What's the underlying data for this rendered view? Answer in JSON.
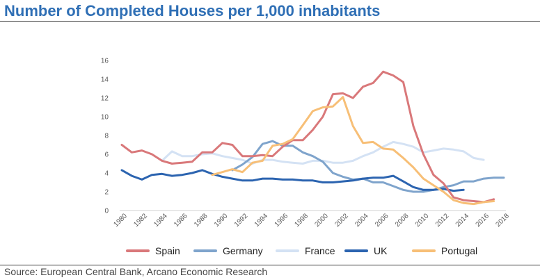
{
  "title": "Number of Completed Houses per 1,000 inhabitants",
  "source": "Source: European Central Bank, Arcano Economic Research",
  "chart_data": {
    "type": "line",
    "title": "Number of Completed Houses per 1,000 inhabitants",
    "xlabel": "",
    "ylabel": "",
    "xlim": [
      1980,
      2018
    ],
    "ylim": [
      0,
      16
    ],
    "yticks": [
      0,
      2,
      4,
      6,
      8,
      10,
      12,
      14,
      16
    ],
    "xticks": [
      1980,
      1982,
      1984,
      1986,
      1988,
      1990,
      1992,
      1994,
      1996,
      1998,
      2000,
      2002,
      2004,
      2006,
      2008,
      2010,
      2012,
      2014,
      2016,
      2018
    ],
    "grid": false,
    "legend_position": "bottom",
    "series": [
      {
        "name": "Spain",
        "color": "#d9787a",
        "x": [
          1980,
          1981,
          1982,
          1983,
          1984,
          1985,
          1986,
          1987,
          1988,
          1989,
          1990,
          1991,
          1992,
          1993,
          1994,
          1995,
          1996,
          1997,
          1998,
          1999,
          2000,
          2001,
          2002,
          2003,
          2004,
          2005,
          2006,
          2007,
          2008,
          2009,
          2010,
          2011,
          2012,
          2013,
          2014,
          2015,
          2016,
          2017
        ],
        "y": [
          7.0,
          6.2,
          6.4,
          6.0,
          5.3,
          5.0,
          5.1,
          5.2,
          6.2,
          6.2,
          7.2,
          7.0,
          5.8,
          5.8,
          5.9,
          5.8,
          6.8,
          7.5,
          7.5,
          8.6,
          10.0,
          12.4,
          12.5,
          12.0,
          13.2,
          13.6,
          14.8,
          14.4,
          13.7,
          9.0,
          6.0,
          3.8,
          2.9,
          1.4,
          1.1,
          1.0,
          0.9,
          1.2
        ]
      },
      {
        "name": "Germany",
        "color": "#7fa4cc",
        "x": [
          1991,
          1992,
          1993,
          1994,
          1995,
          1996,
          1997,
          1998,
          1999,
          2000,
          2001,
          2002,
          2003,
          2004,
          2005,
          2006,
          2007,
          2008,
          2009,
          2010,
          2011,
          2012,
          2013,
          2014,
          2015,
          2016,
          2017,
          2018
        ],
        "y": [
          4.3,
          4.9,
          5.7,
          7.1,
          7.4,
          6.9,
          6.9,
          6.2,
          5.8,
          5.2,
          4.0,
          3.6,
          3.3,
          3.4,
          3.0,
          3.0,
          2.6,
          2.2,
          2.0,
          2.0,
          2.2,
          2.5,
          2.7,
          3.1,
          3.1,
          3.4,
          3.5,
          3.5
        ]
      },
      {
        "name": "France",
        "color": "#d4e2f4",
        "x": [
          1984,
          1985,
          1986,
          1987,
          1988,
          1989,
          1990,
          1991,
          1992,
          1993,
          1994,
          1995,
          1996,
          1997,
          1998,
          1999,
          2000,
          2001,
          2002,
          2003,
          2004,
          2005,
          2006,
          2007,
          2008,
          2009,
          2010,
          2011,
          2012,
          2013,
          2014,
          2015,
          2016
        ],
        "y": [
          5.3,
          6.3,
          5.8,
          5.8,
          6.0,
          6.1,
          5.8,
          5.6,
          5.4,
          5.0,
          5.4,
          5.4,
          5.2,
          5.1,
          5.0,
          5.3,
          5.3,
          5.1,
          5.1,
          5.3,
          5.8,
          6.2,
          6.8,
          7.3,
          7.1,
          6.8,
          6.2,
          6.4,
          6.6,
          6.5,
          6.3,
          5.6,
          5.4
        ]
      },
      {
        "name": "UK",
        "color": "#2c64b0",
        "x": [
          1980,
          1981,
          1982,
          1983,
          1984,
          1985,
          1986,
          1987,
          1988,
          1989,
          1990,
          1991,
          1992,
          1993,
          1994,
          1995,
          1996,
          1997,
          1998,
          1999,
          2000,
          2001,
          2002,
          2003,
          2004,
          2005,
          2006,
          2007,
          2008,
          2009,
          2010,
          2011,
          2012,
          2013,
          2014
        ],
        "y": [
          4.3,
          3.7,
          3.3,
          3.8,
          3.9,
          3.7,
          3.8,
          4.0,
          4.3,
          3.9,
          3.6,
          3.4,
          3.2,
          3.2,
          3.4,
          3.4,
          3.3,
          3.3,
          3.2,
          3.2,
          3.0,
          3.0,
          3.1,
          3.2,
          3.4,
          3.5,
          3.5,
          3.7,
          3.1,
          2.5,
          2.2,
          2.2,
          2.3,
          2.1,
          2.2
        ]
      },
      {
        "name": "Portugal",
        "color": "#f7bf77",
        "x": [
          1989,
          1990,
          1991,
          1992,
          1993,
          1994,
          1995,
          1996,
          1997,
          1998,
          1999,
          2000,
          2001,
          2002,
          2003,
          2004,
          2005,
          2006,
          2007,
          2008,
          2009,
          2010,
          2011,
          2012,
          2013,
          2014,
          2015,
          2016,
          2017
        ],
        "y": [
          3.8,
          4.1,
          4.4,
          4.1,
          5.1,
          5.3,
          6.9,
          7.1,
          7.6,
          9.1,
          10.6,
          11.0,
          11.1,
          12.1,
          9.0,
          7.2,
          7.3,
          6.6,
          6.5,
          5.6,
          4.6,
          3.4,
          2.7,
          2.0,
          1.1,
          0.8,
          0.7,
          0.9,
          1.0
        ]
      }
    ]
  }
}
